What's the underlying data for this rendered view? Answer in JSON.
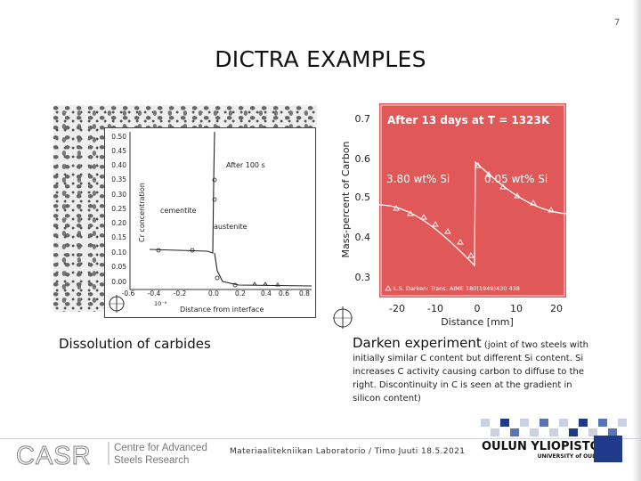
{
  "page_number": "7",
  "title": "DICTRA EXAMPLES",
  "left_figure": {
    "yticks": [
      "0.50",
      "0.45",
      "0.40",
      "0.35",
      "0.30",
      "0.25",
      "0.20",
      "0.15",
      "0.10",
      "0.05",
      "0.00"
    ],
    "xticks": [
      "-0.6",
      "-0.4",
      "-0.2",
      "0.0",
      "0.2",
      "0.4",
      "0.6",
      "0.8"
    ],
    "ylabel": "Cr concentration",
    "xlabel": "Distance from interface",
    "xlabel_factor": "10⁻⁶",
    "annotation_time": "After 100 s",
    "label_left": "cementite",
    "label_right": "austenite",
    "caption": "Dissolution of carbides"
  },
  "right_figure": {
    "yticks": [
      "0.7",
      "0.6",
      "0.5",
      "0.4",
      "0.3"
    ],
    "xticks": [
      "-20",
      "-10",
      "0",
      "10",
      "20"
    ],
    "ylabel": "Mass-percent of Carbon",
    "xlabel": "Distance [mm]",
    "title": "After 13 days at T = 1323K",
    "label_left": "3.80 wt% Si",
    "label_right": "0.05 wt% Si",
    "legend": "L.S. Darken: Trans. AIME 180(1949)430 438",
    "accent_color": "#e05858",
    "caption_bold": "Darken experiment",
    "caption_text": " (joint of two steels with initially similar C content but different Si content. Si increases C activity causing carbon to diffuse to the right. Discontinuity in C is seen at the gradient in silicon content)"
  },
  "footer": {
    "casr_logo_text": "CASR",
    "casr_line1": "Centre for Advanced",
    "casr_line2": "Steels Research",
    "text": "Materiaalitekniikan Laboratorio / Timo Juuti 18.5.2021",
    "university_name": "OULUN YLIOPISTO",
    "university_sub": "UNIVERSITY of OULU",
    "brand_color": "#1f3a8a"
  }
}
